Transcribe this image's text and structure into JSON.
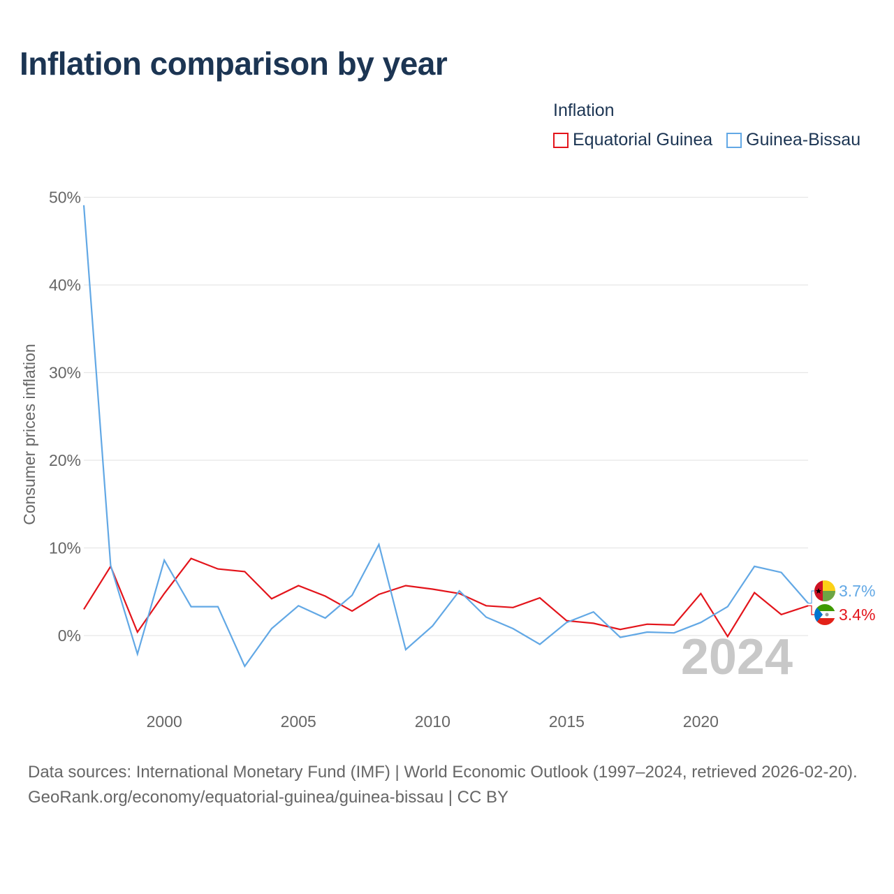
{
  "title": "Inflation comparison by year",
  "legend": {
    "title": "Inflation",
    "items": [
      {
        "label": "Equatorial Guinea",
        "color": "#e3141b"
      },
      {
        "label": "Guinea-Bissau",
        "color": "#62a8e5"
      }
    ]
  },
  "footer": {
    "sources": "Data sources: International Monetary Fund (IMF) | World Economic Outlook (1997–2024, retrieved 2026-02-20).",
    "link": "GeoRank.org/economy/equatorial-guinea/guinea-bissau | CC BY"
  },
  "chart_data": {
    "type": "line",
    "title": "Inflation comparison by year",
    "ylabel": "Consumer prices inflation",
    "xlabel": "",
    "year_watermark": "2024",
    "x": [
      1997,
      1998,
      1999,
      2000,
      2001,
      2002,
      2003,
      2004,
      2005,
      2006,
      2007,
      2008,
      2009,
      2010,
      2011,
      2012,
      2013,
      2014,
      2015,
      2016,
      2017,
      2018,
      2019,
      2020,
      2021,
      2022,
      2023,
      2024
    ],
    "xlim": [
      1997,
      2024
    ],
    "ylim": [
      -8,
      50
    ],
    "y_ticks": [
      0,
      10,
      20,
      30,
      40,
      50
    ],
    "y_tick_labels": [
      "0%",
      "10%",
      "20%",
      "30%",
      "40%",
      "50%"
    ],
    "x_ticks": [
      2000,
      2005,
      2010,
      2015,
      2020
    ],
    "x_tick_labels": [
      "2000",
      "2005",
      "2010",
      "2015",
      "2020"
    ],
    "grid": true,
    "series": [
      {
        "name": "Equatorial Guinea",
        "color": "#e3141b",
        "end_label": "3.4%",
        "values": [
          3.0,
          7.9,
          0.4,
          4.8,
          8.8,
          7.6,
          7.3,
          4.2,
          5.7,
          4.5,
          2.8,
          4.7,
          5.7,
          5.3,
          4.8,
          3.4,
          3.2,
          4.3,
          1.7,
          1.4,
          0.7,
          1.3,
          1.2,
          4.8,
          -0.1,
          4.9,
          2.4,
          3.4
        ]
      },
      {
        "name": "Guinea-Bissau",
        "color": "#62a8e5",
        "end_label": "3.7%",
        "values": [
          49.1,
          8.0,
          -2.1,
          8.6,
          3.3,
          3.3,
          -3.5,
          0.8,
          3.4,
          2.0,
          4.6,
          10.4,
          -1.6,
          1.1,
          5.1,
          2.1,
          0.8,
          -1.0,
          1.5,
          2.7,
          -0.2,
          0.4,
          0.3,
          1.5,
          3.3,
          7.9,
          7.2,
          3.7
        ]
      }
    ]
  }
}
